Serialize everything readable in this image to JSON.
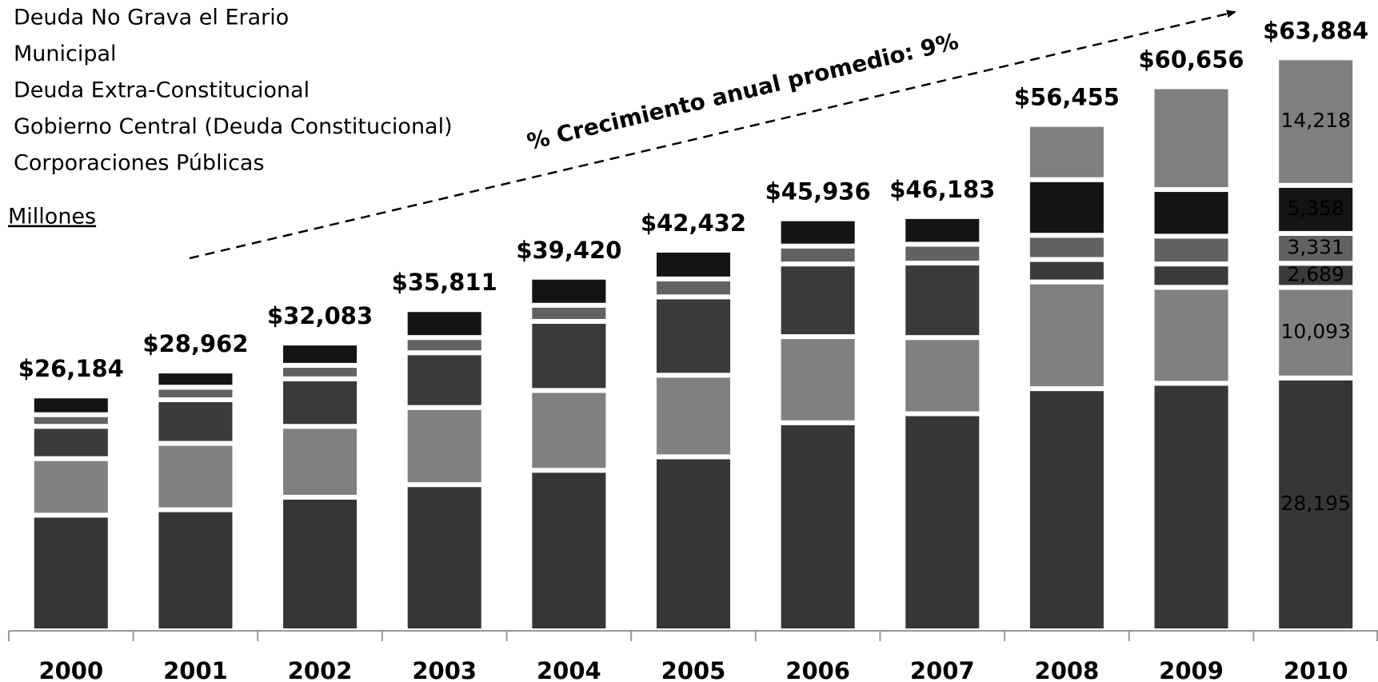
{
  "chart_data": {
    "type": "stacked-bar",
    "categories": [
      "2000",
      "2001",
      "2002",
      "2003",
      "2004",
      "2005",
      "2006",
      "2007",
      "2008",
      "2009",
      "2010"
    ],
    "series": [
      {
        "name": "Corporaciones Públicas",
        "color": "#363636",
        "values": [
          12900,
          13500,
          14900,
          16300,
          17900,
          19400,
          23200,
          24200,
          27000,
          27600,
          28195
        ],
        "value_labels": [
          null,
          null,
          null,
          null,
          null,
          null,
          null,
          null,
          null,
          null,
          "28,195"
        ]
      },
      {
        "name": "Gobierno Central (Deuda Constitucional)",
        "color": "#808080",
        "values": [
          6300,
          7400,
          7900,
          8600,
          8900,
          9100,
          9600,
          8500,
          11900,
          10700,
          10093
        ],
        "value_labels": [
          null,
          null,
          null,
          null,
          null,
          null,
          null,
          null,
          null,
          null,
          "10,093"
        ]
      },
      {
        "name": "Deuda Extra-Constitucional",
        "color": "#3a3a3a",
        "values": [
          3600,
          4862,
          5300,
          6100,
          7700,
          8732,
          8100,
          8300,
          2500,
          2600,
          2689
        ],
        "value_labels": [
          null,
          null,
          null,
          null,
          null,
          null,
          null,
          null,
          null,
          null,
          "2,689"
        ]
      },
      {
        "name": "Municipal",
        "color": "#626262",
        "values": [
          1300,
          1400,
          1500,
          1700,
          1800,
          2000,
          2000,
          2100,
          2700,
          3100,
          3331
        ],
        "value_labels": [
          null,
          null,
          null,
          null,
          null,
          null,
          null,
          null,
          null,
          null,
          "3,331"
        ]
      },
      {
        "name": "Deuda No Grava el Erario",
        "color": "#141414",
        "values": [
          2084,
          1800,
          2483,
          3111,
          3120,
          3200,
          3036,
          3083,
          6200,
          5200,
          5358
        ],
        "value_labels": [
          null,
          null,
          null,
          null,
          null,
          null,
          null,
          null,
          null,
          null,
          "5,358"
        ]
      },
      {
        "name": null,
        "color": "#7f7f7f",
        "values": [
          0,
          0,
          0,
          0,
          0,
          0,
          0,
          0,
          6155,
          11456,
          14218
        ],
        "value_labels": [
          null,
          null,
          null,
          null,
          null,
          null,
          null,
          null,
          null,
          null,
          "14,218"
        ]
      }
    ],
    "totals": [
      26184,
      28962,
      32083,
      35811,
      39420,
      42432,
      45936,
      46183,
      56455,
      60656,
      63884
    ],
    "total_labels": [
      "$26,184",
      "$28,962",
      "$32,083",
      "$35,811",
      "$39,420",
      "$42,432",
      "$45,936",
      "$46,183",
      "$56,455",
      "$60,656",
      "$63,884"
    ],
    "unit_label": "Millones",
    "annotation": "% Crecimiento anual promedio: 9%",
    "ylim": [
      0,
      64000
    ]
  }
}
